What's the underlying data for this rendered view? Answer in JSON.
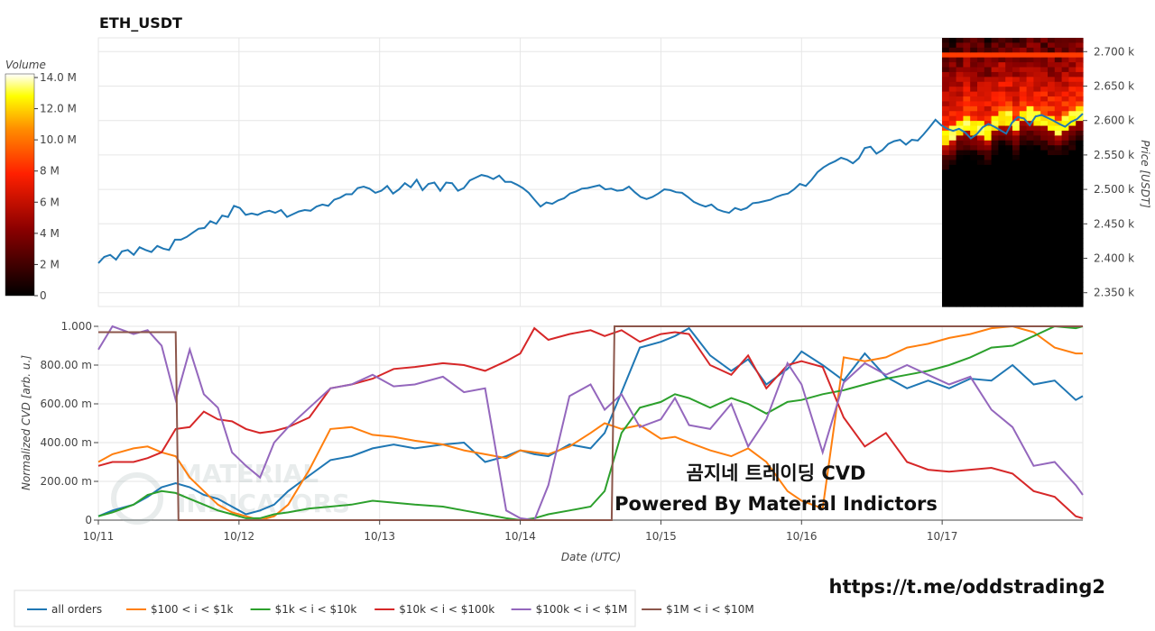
{
  "title": "ETH_USDT",
  "volume_colorbar": {
    "label": "Volume",
    "ticks": [
      "0",
      "2 M",
      "4 M",
      "6 M",
      "8 M",
      "10.0 M",
      "12.0 M",
      "14.0 M"
    ],
    "tick_values": [
      0,
      2,
      4,
      6,
      8,
      10,
      12,
      14
    ],
    "range": [
      0,
      14
    ]
  },
  "watermark": [
    "MATERIAL",
    "INDICATORS"
  ],
  "overlay_text": {
    "line1": "곰지네 트레이딩 CVD",
    "line2": "Powered By Material Indictors"
  },
  "url_text": "https://t.me/oddstrading2",
  "colors": {
    "all": "#1f77b4",
    "s100": "#ff7f0e",
    "s1k": "#2ca02c",
    "s10k": "#d62728",
    "s100k": "#9467bd",
    "s1m": "#8c564b",
    "grid": "#e6e6e6"
  },
  "chart_data": [
    {
      "type": "line",
      "name": "price",
      "ylabel": "Price [USDT]",
      "ylim": [
        2330,
        2720
      ],
      "yticks": [
        2350,
        2400,
        2450,
        2500,
        2550,
        2600,
        2650,
        2700
      ],
      "ytick_labels": [
        "2.350 k",
        "2.400 k",
        "2.450 k",
        "2.500 k",
        "2.550 k",
        "2.600 k",
        "2.650 k",
        "2.700 k"
      ],
      "x": [
        0,
        1,
        2,
        3,
        4,
        5,
        6,
        7,
        8,
        9,
        10,
        11,
        12,
        13,
        14,
        15,
        16,
        17,
        18,
        19,
        20,
        21,
        22,
        23,
        24,
        25,
        26,
        27,
        28,
        29,
        30,
        31,
        32,
        33,
        34,
        35,
        36,
        37,
        38,
        39,
        40,
        41,
        42,
        43,
        44,
        45,
        46,
        47,
        48,
        49,
        50,
        51,
        52,
        53,
        54,
        55,
        56,
        57,
        58,
        59,
        60,
        61,
        62,
        63,
        64,
        65,
        66,
        67,
        68,
        69,
        70,
        71,
        72,
        73,
        74,
        75,
        76,
        77,
        78,
        79,
        80,
        81,
        82,
        83,
        84,
        85,
        86,
        87,
        88,
        89,
        90,
        91,
        92,
        93,
        94,
        95,
        96,
        97,
        98,
        99,
        100,
        101,
        102,
        103,
        104,
        105,
        106,
        107,
        108,
        109,
        110,
        111,
        112,
        113,
        114,
        115,
        116,
        117,
        118,
        119,
        120,
        121,
        122,
        123,
        124,
        125,
        126,
        127,
        128,
        129,
        130,
        131,
        132,
        133,
        134,
        135,
        136,
        137,
        138,
        139,
        140,
        141,
        142,
        143,
        144,
        145,
        146,
        147,
        148,
        149,
        150,
        151,
        152,
        153,
        154,
        155,
        156,
        157,
        158,
        159,
        160,
        161,
        162,
        163,
        164,
        165,
        166,
        167
      ],
      "values": [
        2393,
        2402,
        2405,
        2398,
        2410,
        2412,
        2405,
        2416,
        2412,
        2409,
        2418,
        2414,
        2412,
        2427,
        2427,
        2431,
        2437,
        2443,
        2444,
        2454,
        2450,
        2462,
        2460,
        2476,
        2473,
        2463,
        2465,
        2463,
        2467,
        2469,
        2466,
        2470,
        2460,
        2464,
        2468,
        2470,
        2469,
        2475,
        2478,
        2476,
        2485,
        2488,
        2493,
        2493,
        2502,
        2504,
        2501,
        2495,
        2498,
        2505,
        2494,
        2500,
        2509,
        2503,
        2514,
        2499,
        2508,
        2510,
        2498,
        2510,
        2509,
        2498,
        2502,
        2513,
        2517,
        2521,
        2519,
        2515,
        2520,
        2511,
        2511,
        2507,
        2502,
        2495,
        2485,
        2475,
        2481,
        2479,
        2484,
        2487,
        2494,
        2497,
        2501,
        2502,
        2504,
        2506,
        2500,
        2501,
        2498,
        2499,
        2504,
        2496,
        2489,
        2486,
        2489,
        2494,
        2500,
        2499,
        2496,
        2495,
        2489,
        2482,
        2478,
        2475,
        2478,
        2471,
        2468,
        2466,
        2473,
        2470,
        2473,
        2480,
        2481,
        2483,
        2485,
        2489,
        2492,
        2494,
        2500,
        2508,
        2505,
        2514,
        2525,
        2532,
        2537,
        2541,
        2546,
        2543,
        2538,
        2545,
        2560,
        2562,
        2552,
        2557,
        2566,
        2570,
        2572,
        2565,
        2572,
        2571,
        2580,
        2590,
        2601,
        2593,
        2588,
        2585,
        2588,
        2583,
        2574,
        2580,
        2590,
        2595,
        2591,
        2586,
        2581,
        2597,
        2605,
        2603,
        2593,
        2606,
        2608,
        2604,
        2600,
        2595,
        2591,
        2598,
        2602,
        2610
      ],
      "heatmap_columns": 20,
      "heatmap_rows": 55
    },
    {
      "type": "line",
      "name": "normalized_cvd",
      "xlabel": "Date (UTC)",
      "ylabel": "Normalized CVD [arb. u.]",
      "ylim": [
        0,
        1
      ],
      "yticks": [
        0,
        0.2,
        0.4,
        0.6,
        0.8,
        1.0
      ],
      "ytick_labels": [
        "0",
        "200.00 m",
        "400.00 m",
        "600.00 m",
        "800.00 m",
        "1.000"
      ],
      "xlim": [
        0,
        7
      ],
      "xticks": [
        0,
        1,
        2,
        3,
        4,
        5,
        6
      ],
      "xtick_labels": [
        "10/11",
        "10/12",
        "10/13",
        "10/14",
        "10/15",
        "10/16",
        "10/17"
      ],
      "legend_position": "bottom-left",
      "series": [
        {
          "name": "all orders",
          "color_key": "all",
          "x": [
            0,
            0.1,
            0.25,
            0.35,
            0.45,
            0.55,
            0.65,
            0.75,
            0.85,
            0.95,
            1.05,
            1.15,
            1.25,
            1.35,
            1.5,
            1.65,
            1.8,
            1.95,
            2.1,
            2.25,
            2.45,
            2.6,
            2.75,
            2.9,
            3.0,
            3.1,
            3.2,
            3.35,
            3.5,
            3.6,
            3.72,
            3.85,
            4.0,
            4.1,
            4.2,
            4.35,
            4.5,
            4.62,
            4.75,
            4.9,
            5.0,
            5.15,
            5.3,
            5.45,
            5.6,
            5.75,
            5.9,
            6.05,
            6.2,
            6.35,
            6.5,
            6.65,
            6.8,
            6.95,
            7.0
          ],
          "values": [
            0.02,
            0.05,
            0.08,
            0.12,
            0.17,
            0.19,
            0.17,
            0.13,
            0.11,
            0.07,
            0.03,
            0.05,
            0.08,
            0.15,
            0.23,
            0.31,
            0.33,
            0.37,
            0.39,
            0.37,
            0.39,
            0.4,
            0.3,
            0.33,
            0.36,
            0.34,
            0.33,
            0.39,
            0.37,
            0.45,
            0.66,
            0.89,
            0.92,
            0.95,
            0.99,
            0.85,
            0.77,
            0.83,
            0.7,
            0.78,
            0.87,
            0.8,
            0.72,
            0.86,
            0.74,
            0.68,
            0.72,
            0.68,
            0.73,
            0.72,
            0.8,
            0.7,
            0.72,
            0.62,
            0.64
          ]
        },
        {
          "name": "$100 < i < $1k",
          "color_key": "s100",
          "x": [
            0,
            0.1,
            0.25,
            0.35,
            0.45,
            0.55,
            0.65,
            0.75,
            0.85,
            0.95,
            1.05,
            1.15,
            1.25,
            1.35,
            1.5,
            1.65,
            1.8,
            1.95,
            2.1,
            2.25,
            2.45,
            2.6,
            2.75,
            2.9,
            3.0,
            3.1,
            3.2,
            3.35,
            3.5,
            3.6,
            3.72,
            3.85,
            4.0,
            4.1,
            4.2,
            4.35,
            4.5,
            4.62,
            4.75,
            4.9,
            5.0,
            5.15,
            5.3,
            5.45,
            5.6,
            5.75,
            5.9,
            6.05,
            6.2,
            6.35,
            6.5,
            6.65,
            6.8,
            6.95,
            7.0
          ],
          "values": [
            0.3,
            0.34,
            0.37,
            0.38,
            0.35,
            0.33,
            0.22,
            0.15,
            0.08,
            0.04,
            0.02,
            0.0,
            0.02,
            0.08,
            0.26,
            0.47,
            0.48,
            0.44,
            0.43,
            0.41,
            0.39,
            0.36,
            0.34,
            0.32,
            0.36,
            0.35,
            0.34,
            0.38,
            0.45,
            0.5,
            0.47,
            0.49,
            0.42,
            0.43,
            0.4,
            0.36,
            0.33,
            0.37,
            0.3,
            0.15,
            0.1,
            0.06,
            0.84,
            0.82,
            0.84,
            0.89,
            0.91,
            0.94,
            0.96,
            0.99,
            1.0,
            0.97,
            0.89,
            0.86,
            0.86
          ]
        },
        {
          "name": "$1k < i < $10k",
          "color_key": "s1k",
          "x": [
            0,
            0.1,
            0.25,
            0.35,
            0.45,
            0.55,
            0.65,
            0.75,
            0.85,
            0.95,
            1.05,
            1.15,
            1.25,
            1.35,
            1.5,
            1.65,
            1.8,
            1.95,
            2.1,
            2.25,
            2.45,
            2.6,
            2.75,
            2.9,
            3.0,
            3.1,
            3.2,
            3.35,
            3.5,
            3.6,
            3.72,
            3.85,
            4.0,
            4.1,
            4.2,
            4.35,
            4.5,
            4.62,
            4.75,
            4.9,
            5.0,
            5.15,
            5.3,
            5.45,
            5.6,
            5.75,
            5.9,
            6.05,
            6.2,
            6.35,
            6.5,
            6.65,
            6.8,
            6.95,
            7.0
          ],
          "values": [
            0.02,
            0.04,
            0.08,
            0.13,
            0.15,
            0.14,
            0.11,
            0.08,
            0.05,
            0.03,
            0.01,
            0.01,
            0.03,
            0.04,
            0.06,
            0.07,
            0.08,
            0.1,
            0.09,
            0.08,
            0.07,
            0.05,
            0.03,
            0.01,
            0.0,
            0.01,
            0.03,
            0.05,
            0.07,
            0.15,
            0.45,
            0.58,
            0.61,
            0.65,
            0.63,
            0.58,
            0.63,
            0.6,
            0.55,
            0.61,
            0.62,
            0.65,
            0.67,
            0.7,
            0.73,
            0.75,
            0.77,
            0.8,
            0.84,
            0.89,
            0.9,
            0.95,
            1.0,
            0.99,
            1.0
          ]
        },
        {
          "name": "$10k < i < $100k",
          "color_key": "s10k",
          "x": [
            0,
            0.1,
            0.25,
            0.35,
            0.45,
            0.55,
            0.65,
            0.75,
            0.85,
            0.95,
            1.05,
            1.15,
            1.25,
            1.35,
            1.5,
            1.65,
            1.8,
            1.95,
            2.1,
            2.25,
            2.45,
            2.6,
            2.75,
            2.9,
            3.0,
            3.1,
            3.2,
            3.35,
            3.5,
            3.6,
            3.72,
            3.85,
            4.0,
            4.1,
            4.2,
            4.35,
            4.5,
            4.62,
            4.75,
            4.9,
            5.0,
            5.15,
            5.3,
            5.45,
            5.6,
            5.75,
            5.9,
            6.05,
            6.2,
            6.35,
            6.5,
            6.65,
            6.8,
            6.95,
            7.0
          ],
          "values": [
            0.28,
            0.3,
            0.3,
            0.32,
            0.35,
            0.47,
            0.48,
            0.56,
            0.52,
            0.51,
            0.47,
            0.45,
            0.46,
            0.48,
            0.53,
            0.68,
            0.7,
            0.73,
            0.78,
            0.79,
            0.81,
            0.8,
            0.77,
            0.82,
            0.86,
            0.99,
            0.93,
            0.96,
            0.98,
            0.95,
            0.98,
            0.92,
            0.96,
            0.97,
            0.96,
            0.8,
            0.75,
            0.85,
            0.68,
            0.8,
            0.82,
            0.79,
            0.53,
            0.38,
            0.45,
            0.3,
            0.26,
            0.25,
            0.26,
            0.27,
            0.24,
            0.15,
            0.12,
            0.02,
            0.01
          ]
        },
        {
          "name": "$100k < i < $1M",
          "color_key": "s100k",
          "x": [
            0,
            0.1,
            0.25,
            0.35,
            0.45,
            0.55,
            0.65,
            0.75,
            0.85,
            0.95,
            1.05,
            1.15,
            1.25,
            1.35,
            1.5,
            1.65,
            1.8,
            1.95,
            2.1,
            2.25,
            2.45,
            2.6,
            2.75,
            2.9,
            3.0,
            3.1,
            3.2,
            3.35,
            3.5,
            3.6,
            3.72,
            3.85,
            4.0,
            4.1,
            4.2,
            4.35,
            4.5,
            4.62,
            4.75,
            4.9,
            5.0,
            5.15,
            5.3,
            5.45,
            5.6,
            5.75,
            5.9,
            6.05,
            6.2,
            6.35,
            6.5,
            6.65,
            6.8,
            6.95,
            7.0
          ],
          "values": [
            0.88,
            1.0,
            0.96,
            0.98,
            0.9,
            0.62,
            0.88,
            0.65,
            0.58,
            0.35,
            0.28,
            0.22,
            0.4,
            0.48,
            0.58,
            0.68,
            0.7,
            0.75,
            0.69,
            0.7,
            0.74,
            0.66,
            0.68,
            0.05,
            0.01,
            0.0,
            0.18,
            0.64,
            0.7,
            0.57,
            0.65,
            0.48,
            0.52,
            0.63,
            0.49,
            0.47,
            0.6,
            0.38,
            0.52,
            0.81,
            0.7,
            0.35,
            0.71,
            0.81,
            0.75,
            0.8,
            0.75,
            0.7,
            0.74,
            0.57,
            0.48,
            0.28,
            0.3,
            0.18,
            0.13
          ]
        },
        {
          "name": "$1M < i < $10M",
          "color_key": "s1m",
          "x": [
            0,
            0.55,
            0.57,
            3.65,
            3.67,
            7.0
          ],
          "values": [
            0.97,
            0.97,
            0.0,
            0.0,
            1.0,
            1.0
          ]
        }
      ]
    }
  ],
  "legend": [
    {
      "label": "all orders",
      "color_key": "all"
    },
    {
      "label": "$100 < i < $1k",
      "color_key": "s100"
    },
    {
      "label": "$1k < i < $10k",
      "color_key": "s1k"
    },
    {
      "label": "$10k < i < $100k",
      "color_key": "s10k"
    },
    {
      "label": "$100k < i < $1M",
      "color_key": "s100k"
    },
    {
      "label": "$1M < i < $10M",
      "color_key": "s1m"
    }
  ]
}
